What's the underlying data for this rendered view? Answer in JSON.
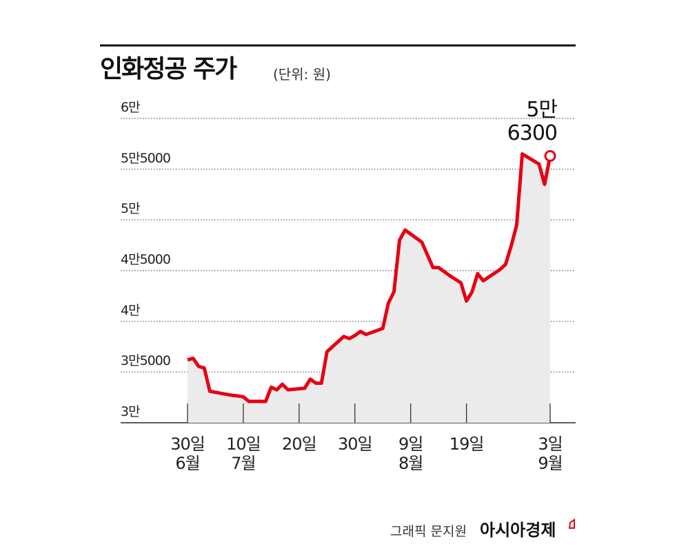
{
  "chart_data": {
    "type": "line",
    "title": "인화정공 주가",
    "subtitle": "(단위: 원)",
    "x": [
      0,
      1,
      2,
      3,
      4,
      6,
      8,
      9,
      10,
      11,
      12,
      14,
      15,
      16,
      17,
      18,
      21,
      22,
      23,
      24,
      25,
      28,
      29,
      30,
      31,
      32,
      35,
      36,
      37,
      38,
      39,
      42,
      44,
      45,
      47,
      49,
      50,
      51,
      52,
      53,
      56,
      57,
      58,
      59,
      60,
      63,
      64,
      65
    ],
    "series": [
      {
        "name": "인화정공",
        "color": "#e60012",
        "values": [
          36200,
          36350,
          35550,
          35400,
          33100,
          32900,
          32700,
          32650,
          32550,
          32100,
          32100,
          32100,
          33500,
          33250,
          33800,
          33250,
          33400,
          34300,
          33900,
          33900,
          37000,
          38500,
          38300,
          38600,
          39000,
          38700,
          39300,
          41800,
          42900,
          48000,
          49000,
          47800,
          45300,
          45300,
          44500,
          43800,
          42000,
          42900,
          44700,
          44000,
          45100,
          45600,
          47400,
          49500,
          56500,
          55500,
          53500,
          56300
        ],
        "value_labels": [
          null,
          null,
          null,
          null,
          null,
          null,
          null,
          null,
          null,
          null,
          null,
          null,
          null,
          null,
          null,
          null,
          null,
          null,
          null,
          null,
          null,
          null,
          null,
          null,
          null,
          null,
          null,
          null,
          null,
          null,
          null,
          null,
          null,
          null,
          null,
          null,
          null,
          null,
          null,
          null,
          null,
          null,
          null,
          null,
          null,
          null,
          null,
          "5만\n6300"
        ]
      }
    ],
    "xlim": [
      0,
      65
    ],
    "xticks": [
      {
        "value": 0,
        "label": "30일\n6월"
      },
      {
        "value": 10,
        "label": "10일\n7월"
      },
      {
        "value": 20,
        "label": "20일"
      },
      {
        "value": 30,
        "label": "30일"
      },
      {
        "value": 40,
        "label": "9일\n8월"
      },
      {
        "value": 50,
        "label": "19일"
      },
      {
        "value": 65,
        "label": "3일\n9월"
      }
    ],
    "ylim": [
      30000,
      60000
    ],
    "yticks": [
      {
        "value": 30000,
        "label": "3만"
      },
      {
        "value": 35000,
        "label": "3만5000"
      },
      {
        "value": 40000,
        "label": "4만"
      },
      {
        "value": 45000,
        "label": "4만5000"
      },
      {
        "value": 50000,
        "label": "5만"
      },
      {
        "value": 55000,
        "label": "5만5000"
      },
      {
        "value": 60000,
        "label": "6만"
      }
    ],
    "grid": true,
    "area_color": "#ebebeb",
    "credit": "그래픽 문지원",
    "source": "아시아경제"
  }
}
